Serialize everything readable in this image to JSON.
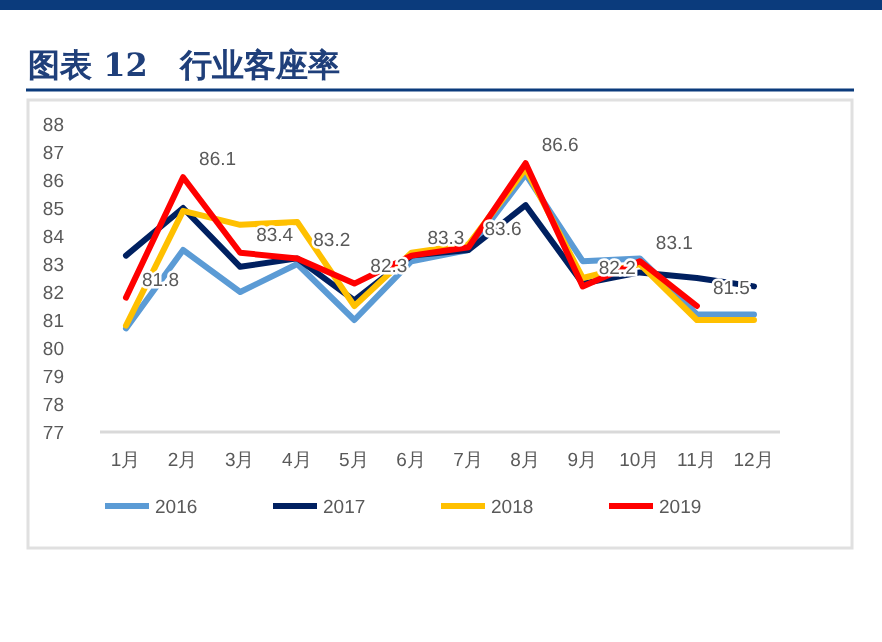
{
  "chart_data": {
    "type": "line",
    "title": "图表 12　行业客座率",
    "categories": [
      "1月",
      "2月",
      "3月",
      "4月",
      "5月",
      "6月",
      "7月",
      "8月",
      "9月",
      "10月",
      "11月",
      "12月"
    ],
    "ylim": [
      77,
      88
    ],
    "yticks": [
      77,
      78,
      79,
      80,
      81,
      82,
      83,
      84,
      85,
      86,
      87,
      88
    ],
    "grid": false,
    "legend": "bottom",
    "series": [
      {
        "name": "2016",
        "color": "#5b9bd5",
        "values": [
          80.7,
          83.5,
          82.0,
          83.0,
          81.0,
          83.1,
          83.5,
          86.2,
          83.1,
          83.2,
          81.2,
          81.2
        ]
      },
      {
        "name": "2017",
        "color": "#002060",
        "values": [
          83.3,
          85.0,
          82.9,
          83.2,
          81.7,
          83.3,
          83.5,
          85.1,
          82.3,
          82.7,
          82.5,
          82.2
        ]
      },
      {
        "name": "2018",
        "color": "#ffc000",
        "values": [
          80.8,
          84.9,
          84.4,
          84.5,
          81.5,
          83.4,
          83.7,
          86.4,
          82.5,
          83.0,
          81.0,
          81.0
        ]
      },
      {
        "name": "2019",
        "color": "#ff0000",
        "values": [
          81.8,
          86.1,
          83.4,
          83.2,
          82.3,
          83.3,
          83.6,
          86.6,
          82.2,
          83.1,
          81.5,
          null
        ],
        "value_labels": [
          "81.8",
          "86.1",
          "83.4",
          "83.2",
          "82.3",
          "83.3",
          "83.6",
          "86.6",
          "82.2",
          "83.1",
          "81.5",
          null
        ]
      }
    ]
  }
}
